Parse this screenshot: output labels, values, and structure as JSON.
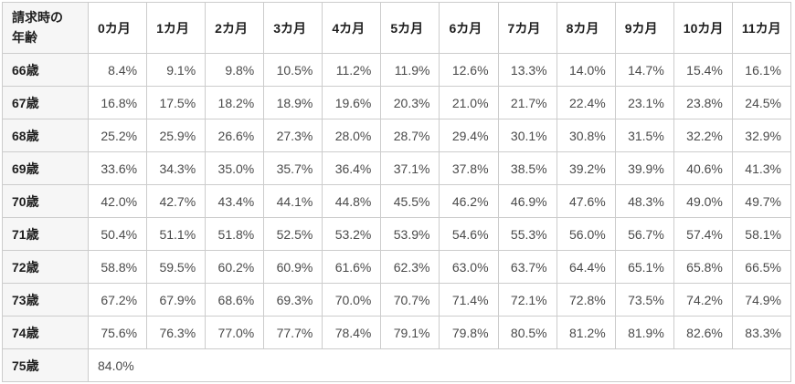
{
  "table": {
    "corner_header": {
      "line1": "請求時の",
      "line2": "年齢"
    },
    "month_headers": [
      "0カ月",
      "1カ月",
      "2カ月",
      "3カ月",
      "4カ月",
      "5カ月",
      "6カ月",
      "7カ月",
      "8カ月",
      "9カ月",
      "10カ月",
      "11カ月"
    ],
    "rows": [
      {
        "age": "66歳",
        "values": [
          "8.4%",
          "9.1%",
          "9.8%",
          "10.5%",
          "11.2%",
          "11.9%",
          "12.6%",
          "13.3%",
          "14.0%",
          "14.7%",
          "15.4%",
          "16.1%"
        ]
      },
      {
        "age": "67歳",
        "values": [
          "16.8%",
          "17.5%",
          "18.2%",
          "18.9%",
          "19.6%",
          "20.3%",
          "21.0%",
          "21.7%",
          "22.4%",
          "23.1%",
          "23.8%",
          "24.5%"
        ]
      },
      {
        "age": "68歳",
        "values": [
          "25.2%",
          "25.9%",
          "26.6%",
          "27.3%",
          "28.0%",
          "28.7%",
          "29.4%",
          "30.1%",
          "30.8%",
          "31.5%",
          "32.2%",
          "32.9%"
        ]
      },
      {
        "age": "69歳",
        "values": [
          "33.6%",
          "34.3%",
          "35.0%",
          "35.7%",
          "36.4%",
          "37.1%",
          "37.8%",
          "38.5%",
          "39.2%",
          "39.9%",
          "40.6%",
          "41.3%"
        ]
      },
      {
        "age": "70歳",
        "values": [
          "42.0%",
          "42.7%",
          "43.4%",
          "44.1%",
          "44.8%",
          "45.5%",
          "46.2%",
          "46.9%",
          "47.6%",
          "48.3%",
          "49.0%",
          "49.7%"
        ]
      },
      {
        "age": "71歳",
        "values": [
          "50.4%",
          "51.1%",
          "51.8%",
          "52.5%",
          "53.2%",
          "53.9%",
          "54.6%",
          "55.3%",
          "56.0%",
          "56.7%",
          "57.4%",
          "58.1%"
        ]
      },
      {
        "age": "72歳",
        "values": [
          "58.8%",
          "59.5%",
          "60.2%",
          "60.9%",
          "61.6%",
          "62.3%",
          "63.0%",
          "63.7%",
          "64.4%",
          "65.1%",
          "65.8%",
          "66.5%"
        ]
      },
      {
        "age": "73歳",
        "values": [
          "67.2%",
          "67.9%",
          "68.6%",
          "69.3%",
          "70.0%",
          "70.7%",
          "71.4%",
          "72.1%",
          "72.8%",
          "73.5%",
          "74.2%",
          "74.9%"
        ]
      },
      {
        "age": "74歳",
        "values": [
          "75.6%",
          "76.3%",
          "77.0%",
          "77.7%",
          "78.4%",
          "79.1%",
          "79.8%",
          "80.5%",
          "81.2%",
          "81.9%",
          "82.6%",
          "83.3%"
        ]
      },
      {
        "age": "75歳",
        "values": [
          "84.0%"
        ]
      }
    ]
  },
  "colors": {
    "border": "#cccccc",
    "label_bg": "#f6f6f6",
    "cell_bg": "#ffffff",
    "header_text": "#1f1f1f",
    "value_text": "#4a4a4a"
  }
}
